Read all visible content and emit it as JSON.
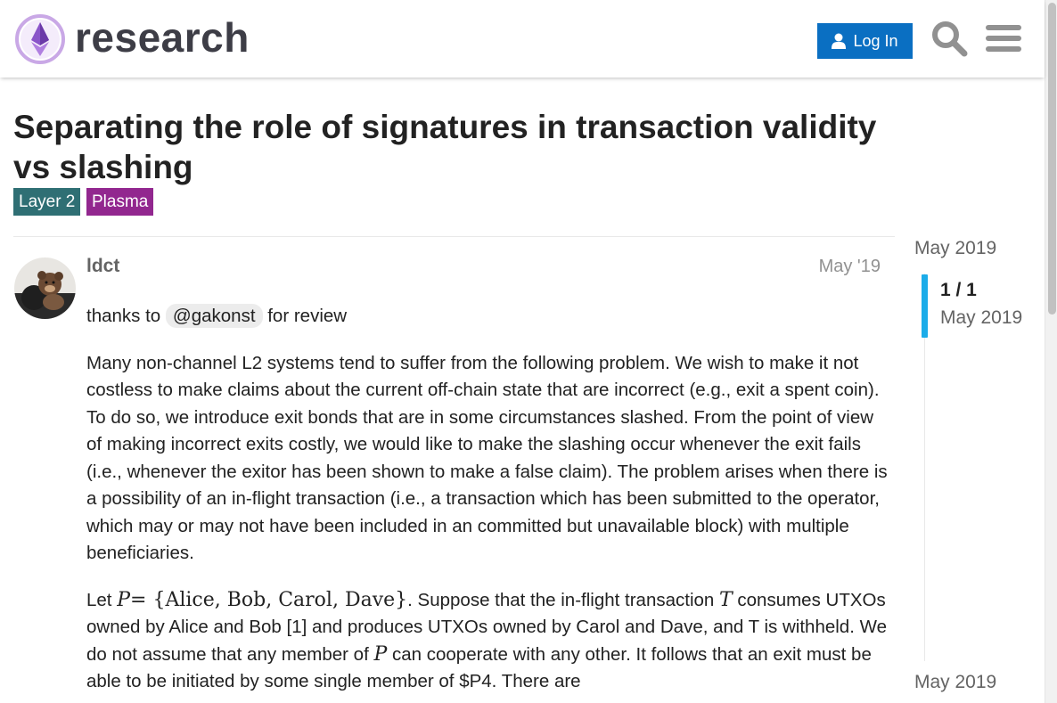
{
  "header": {
    "logo_text": "research",
    "login_label": "Log In"
  },
  "topic": {
    "title": "Separating the role of signatures in transaction validity vs slashing",
    "tags": [
      "Layer 2",
      "Plasma"
    ],
    "colors": {
      "layer2": "#2f6f74",
      "plasma": "#92278f"
    }
  },
  "post": {
    "username": "ldct",
    "date": "May '19",
    "thanks_prefix": "thanks to",
    "mention": "@gakonst",
    "thanks_suffix": "for review",
    "paragraph_1": "Many non-channel L2 systems tend to suffer from the following problem. We wish to make it not costless to make claims about the current off-chain state that are incorrect (e.g., exit a spent coin). To do so, we introduce exit bonds that are in some circumstances slashed. From the point of view of making incorrect exits costly, we would like to make the slashing occur whenever the exit fails (i.e., whenever the exitor has been shown to make a false claim). The problem arises when there is a possibility of an in-flight transaction (i.e., a transaction which has been submitted to the operator, which may or may not have been included in an committed but unavailable block) with multiple beneficiaries.",
    "p2_let": "Let",
    "p2_var_p": "P",
    "p2_set": "= {Alice, Bob, Carol, Dave}",
    "p2_suppose": ". Suppose that the in-flight transaction",
    "p2_var_t": "T",
    "p2_rest_1": "consumes UTXOs owned by Alice and Bob [1] and produces UTXOs owned by Carol and Dave, and T is withheld. We do not assume that any member of",
    "p2_var_p2": "P",
    "p2_rest_2": "can cooperate with any other. It follows that an exit must be able to be initiated by some single member of $P4. There are"
  },
  "timeline": {
    "top_date": "May 2019",
    "position": "1 / 1",
    "position_date": "May 2019",
    "bottom_date": "May 2019",
    "accent": "#1bace9"
  }
}
